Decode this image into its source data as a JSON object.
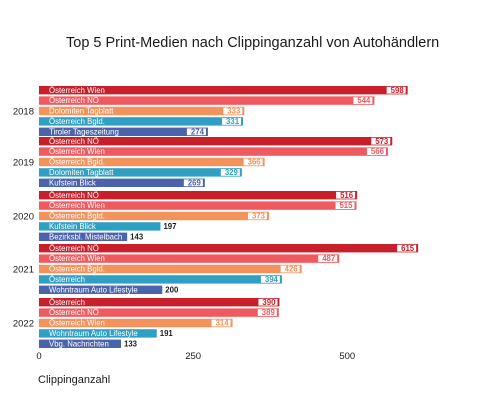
{
  "chart_data": {
    "type": "bar",
    "orientation": "horizontal",
    "title": "Top 5 Print-Medien nach Clippinganzahl von Autohändlern",
    "xlabel": "Clippinganzahl",
    "ylabel": "",
    "xlim": [
      0,
      750
    ],
    "x_ticks": [
      0,
      250,
      500
    ],
    "grid": false,
    "groups": [
      {
        "year": "2018",
        "bars": [
          {
            "label": "Österreich Wien",
            "value": 598,
            "color": "#c8202b"
          },
          {
            "label": "Österreich NÖ",
            "value": 544,
            "color": "#ee5a5f"
          },
          {
            "label": "Dolomiten Tagblatt",
            "value": 333,
            "color": "#f4925c"
          },
          {
            "label": "Österreich Bgld.",
            "value": 331,
            "color": "#2f9fc4"
          },
          {
            "label": "Tiroler Tageszeitung",
            "value": 274,
            "color": "#4b63ad"
          }
        ]
      },
      {
        "year": "2019",
        "bars": [
          {
            "label": "Österreich NÖ",
            "value": 573,
            "color": "#c8202b"
          },
          {
            "label": "Österreich Wien",
            "value": 566,
            "color": "#ee5a5f"
          },
          {
            "label": "Österreich Bgld.",
            "value": 366,
            "color": "#f4925c"
          },
          {
            "label": "Dolomiten Tagblatt",
            "value": 329,
            "color": "#2f9fc4"
          },
          {
            "label": "Kufstein Blick",
            "value": 269,
            "color": "#4b63ad"
          }
        ]
      },
      {
        "year": "2020",
        "bars": [
          {
            "label": "Österreich NÖ",
            "value": 516,
            "color": "#c8202b"
          },
          {
            "label": "Österreich Wien",
            "value": 515,
            "color": "#ee5a5f"
          },
          {
            "label": "Österreich Bgld.",
            "value": 373,
            "color": "#f4925c"
          },
          {
            "label": "Kufstein Blick",
            "value": 197,
            "color": "#2f9fc4"
          },
          {
            "label": "Bezirksbl. Mistelbach",
            "value": 143,
            "color": "#4b63ad"
          }
        ]
      },
      {
        "year": "2021",
        "bars": [
          {
            "label": "Österreich NÖ",
            "value": 615,
            "color": "#c8202b"
          },
          {
            "label": "Österreich Wien",
            "value": 487,
            "color": "#ee5a5f"
          },
          {
            "label": "Österreich Bgld.",
            "value": 426,
            "color": "#f4925c"
          },
          {
            "label": "Österreich",
            "value": 394,
            "color": "#2f9fc4"
          },
          {
            "label": "Wohntraum Auto Lifestyle",
            "value": 200,
            "color": "#4b63ad"
          }
        ]
      },
      {
        "year": "2022",
        "bars": [
          {
            "label": "Österreich",
            "value": 390,
            "color": "#c8202b"
          },
          {
            "label": "Österreich NÖ",
            "value": 389,
            "color": "#ee5a5f"
          },
          {
            "label": "Österreich Wien",
            "value": 314,
            "color": "#f4925c"
          },
          {
            "label": "Wohntraum Auto Lifestyle",
            "value": 191,
            "color": "#2f9fc4"
          },
          {
            "label": "Vbg. Nachrichten",
            "value": 133,
            "color": "#4b63ad"
          }
        ]
      }
    ]
  }
}
